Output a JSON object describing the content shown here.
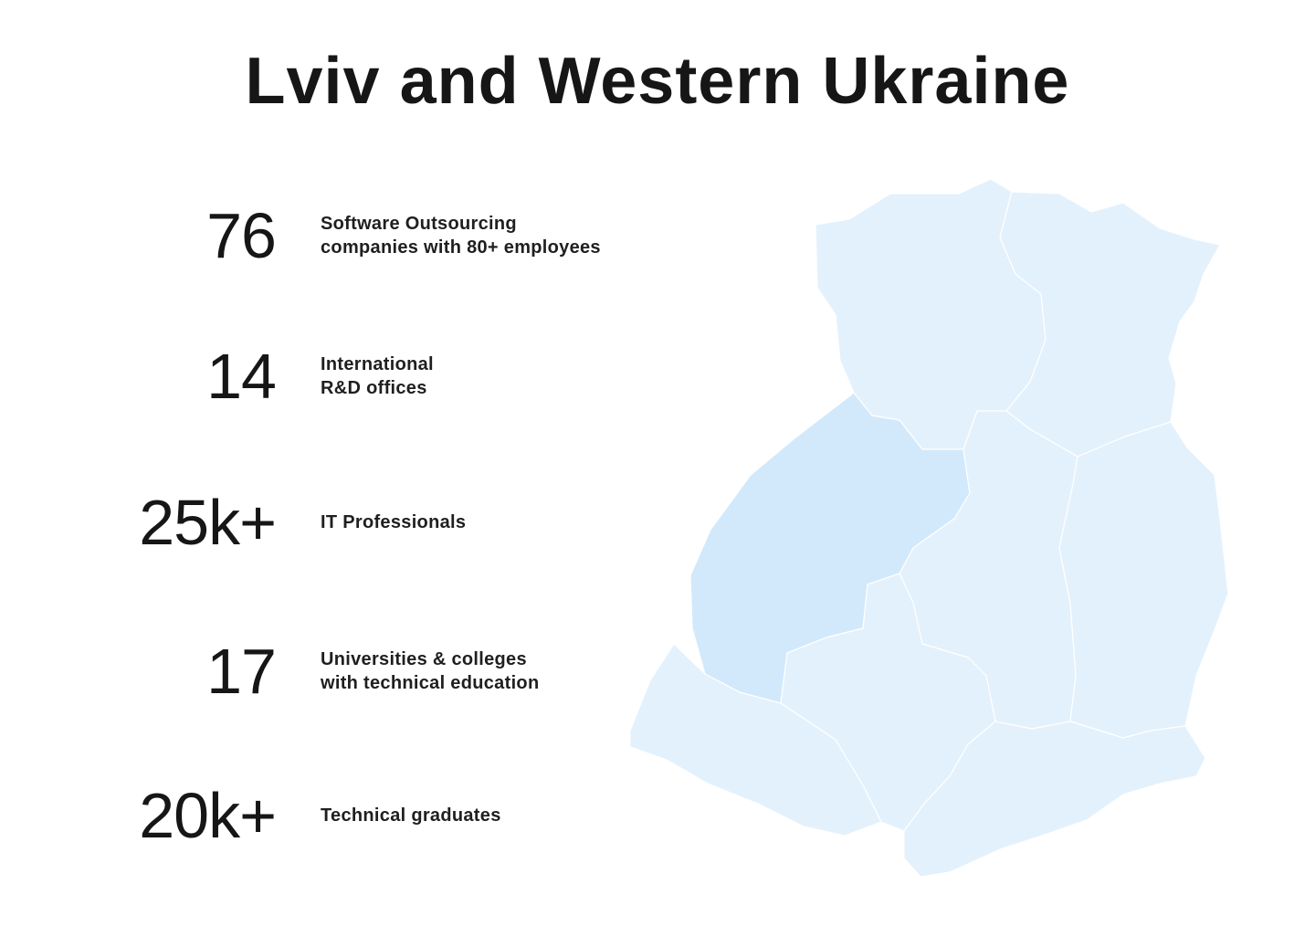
{
  "title": "Lviv and Western Ukraine",
  "stats": [
    {
      "value": "76",
      "label_lines": [
        "Software Outsourcing",
        "companies with 80+ employees"
      ]
    },
    {
      "value": "14",
      "label_lines": [
        "International",
        "R&D offices"
      ]
    },
    {
      "value": "25k+",
      "label_lines": [
        "IT Professionals"
      ]
    },
    {
      "value": "17",
      "label_lines": [
        "Universities & colleges",
        "with technical education"
      ]
    },
    {
      "value": "20k+",
      "label_lines": [
        "Technical graduates"
      ]
    }
  ],
  "map": {
    "highlighted_region_color": "#d2e9fc",
    "region_color": "#e3f1fc",
    "border_color": "#ffffff"
  }
}
